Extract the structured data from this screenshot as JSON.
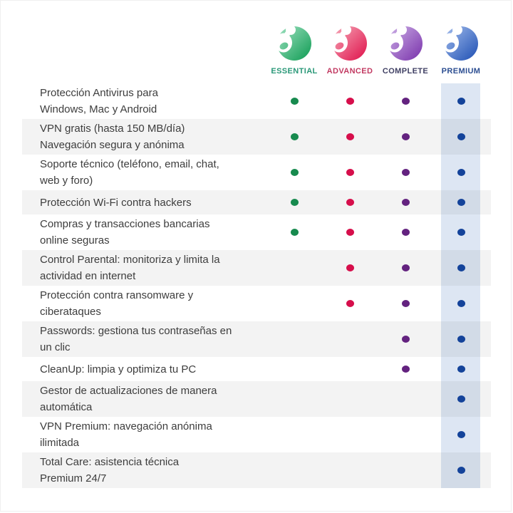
{
  "plans": [
    {
      "name": "ESSENTIAL",
      "label_color": "#2a9878",
      "logo_light": "#9adfbd",
      "logo_dark": "#149e57",
      "dot_color": "#178a4e"
    },
    {
      "name": "ADVANCED",
      "label_color": "#c23a62",
      "logo_light": "#f5a3b4",
      "logo_dark": "#e0164e",
      "dot_color": "#d60e4b"
    },
    {
      "name": "COMPLETE",
      "label_color": "#3f3f63",
      "logo_light": "#c9abe4",
      "logo_dark": "#7c36ad",
      "dot_color": "#63227f"
    },
    {
      "name": "PREMIUM",
      "label_color": "#2b4d91",
      "logo_light": "#9fbaeb",
      "logo_dark": "#2353b5",
      "dot_color": "#14439a",
      "column_highlight": "#dde6f3"
    }
  ],
  "features": [
    {
      "line1": "Protección Antivirus para",
      "line2": "Windows, Mac y Android",
      "included": [
        true,
        true,
        true,
        true
      ]
    },
    {
      "line1": "VPN gratis (hasta 150 MB/día)",
      "line2": "Navegación segura y anónima",
      "included": [
        true,
        true,
        true,
        true
      ]
    },
    {
      "line1": "Soporte técnico (teléfono, email, chat,",
      "line2": "web y foro)",
      "included": [
        true,
        true,
        true,
        true
      ]
    },
    {
      "line1": "Protección Wi-Fi contra hackers",
      "line2": "",
      "included": [
        true,
        true,
        true,
        true
      ]
    },
    {
      "line1": "Compras y transacciones bancarias",
      "line2": "online seguras",
      "included": [
        true,
        true,
        true,
        true
      ]
    },
    {
      "line1": "Control Parental: monitoriza y limita la",
      "line2": "actividad en internet",
      "included": [
        false,
        true,
        true,
        true
      ]
    },
    {
      "line1": "Protección contra ransomware y",
      "line2": "ciberataques",
      "included": [
        false,
        true,
        true,
        true
      ]
    },
    {
      "line1": "Passwords: gestiona tus contraseñas en",
      "line2": "un clic",
      "included": [
        false,
        false,
        true,
        true
      ]
    },
    {
      "line1": "CleanUp: limpia y optimiza tu PC",
      "line2": "",
      "included": [
        false,
        false,
        true,
        true
      ]
    },
    {
      "line1": "Gestor de actualizaciones de manera",
      "line2": "automática",
      "included": [
        false,
        false,
        false,
        true
      ]
    },
    {
      "line1": "VPN Premium: navegación anónima",
      "line2": "ilimitada",
      "included": [
        false,
        false,
        false,
        true
      ]
    },
    {
      "line1": "Total Care: asistencia técnica",
      "line2": "Premium 24/7",
      "included": [
        false,
        false,
        false,
        true
      ]
    }
  ]
}
